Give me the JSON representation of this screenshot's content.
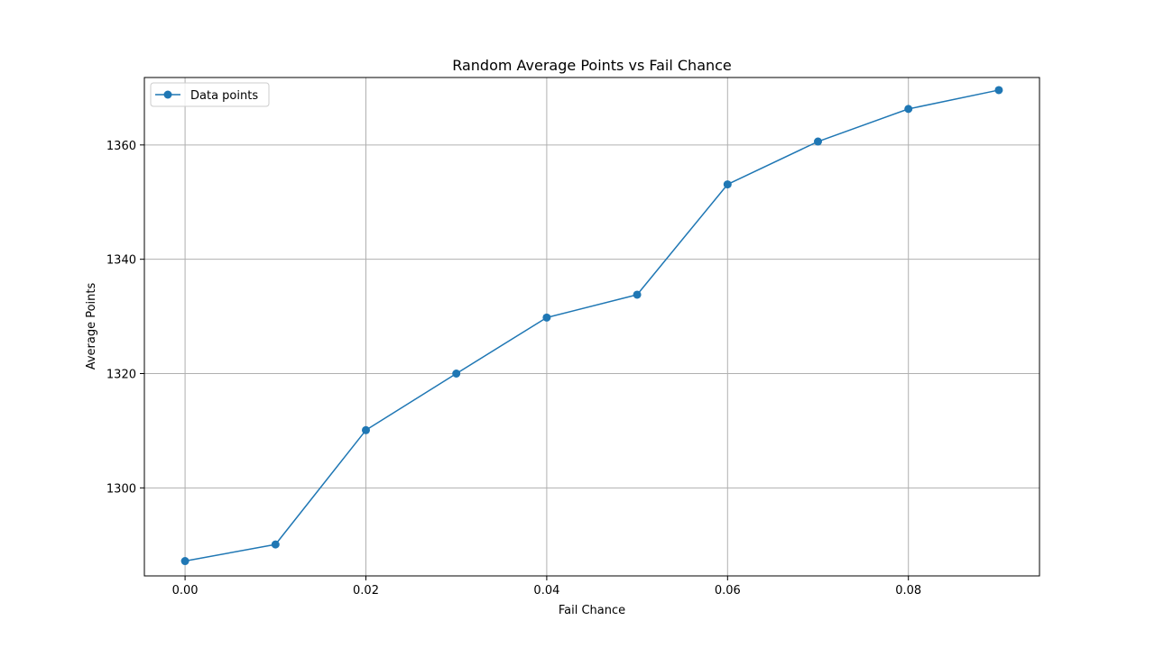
{
  "chart_data": {
    "type": "line",
    "title": "Random Average Points vs Fail Chance",
    "xlabel": "Fail Chance",
    "ylabel": "Average Points",
    "xlim": [
      -0.0045,
      0.0945
    ],
    "ylim": [
      1284.6,
      1371.8
    ],
    "xticks": [
      0.0,
      0.02,
      0.04,
      0.06,
      0.08
    ],
    "xtick_labels": [
      "0.00",
      "0.02",
      "0.04",
      "0.06",
      "0.08"
    ],
    "yticks": [
      1300,
      1320,
      1340,
      1360
    ],
    "ytick_labels": [
      "1300",
      "1320",
      "1340",
      "1360"
    ],
    "grid": true,
    "legend_position": "top-left",
    "series": [
      {
        "name": "Data points",
        "color": "#1f77b4",
        "marker": "circle",
        "x": [
          0.0,
          0.01,
          0.02,
          0.03,
          0.04,
          0.05,
          0.06,
          0.07,
          0.08,
          0.09
        ],
        "y": [
          1287.2,
          1290.1,
          1310.1,
          1320.0,
          1329.8,
          1333.8,
          1353.1,
          1360.6,
          1366.3,
          1369.6
        ]
      }
    ]
  }
}
